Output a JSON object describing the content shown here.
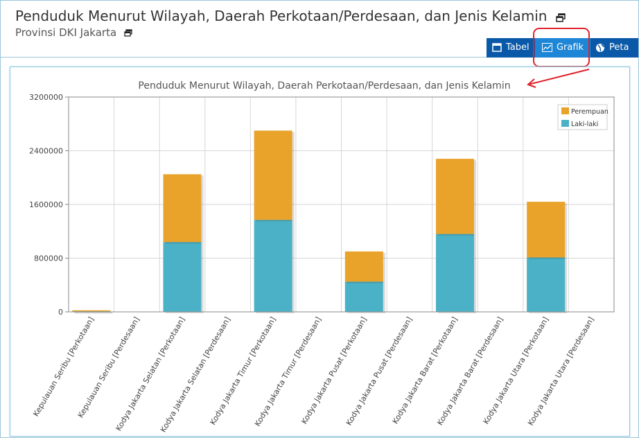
{
  "header": {
    "title": "Penduduk Menurut Wilayah, Daerah Perkotaan/Perdesaan, dan Jenis Kelamin",
    "subtitle": "Provinsi DKI Jakarta"
  },
  "tabs": [
    {
      "label": "Tabel",
      "icon": "window-icon"
    },
    {
      "label": "Grafik",
      "icon": "line-chart-icon",
      "active": true
    },
    {
      "label": "Peta",
      "icon": "globe-icon"
    }
  ],
  "colors": {
    "tab_bar": "#0a58a8",
    "tab_active": "#1e86d6",
    "laki_laki": "#4bb1c6",
    "perempuan": "#e9a32b",
    "annotation": "#e0202a"
  },
  "chart_data": {
    "type": "bar",
    "stacked": true,
    "title": "Penduduk Menurut Wilayah, Daerah Perkotaan/Perdesaan, dan Jenis Kelamin",
    "xlabel": "",
    "ylabel": "",
    "ylim": [
      0,
      3200000
    ],
    "yticks": [
      "3200000",
      "2400000",
      "1600000",
      "800000",
      "0"
    ],
    "grid": true,
    "legend_position": "top-right",
    "categories": [
      "Kepulauan Seribu [Perkotaan]",
      "Kepulauan Seribu [Perdesaan]",
      "Kodya Jakarta Selatan [Perkotaan]",
      "Kodya Jakarta Selatan [Perdesaan]",
      "Kodya Jakarta Timur [Perkotaan]",
      "Kodya Jakarta Timur [Perdesaan]",
      "Kodya Jakarta Pusat [Perkotaan]",
      "Kodya Jakarta Pusat [Perdesaan]",
      "Kodya Jakarta Barat [Perkotaan]",
      "Kodya Jakarta Barat [Perdesaan]",
      "Kodya Jakarta Utara [Perkotaan]",
      "Kodya Jakarta Utara [Perdesaan]"
    ],
    "series": [
      {
        "name": "Laki-laki",
        "color": "#4bb1c6",
        "values": [
          11900,
          0,
          1040000,
          0,
          1370000,
          0,
          450000,
          0,
          1160000,
          0,
          810000,
          0
        ]
      },
      {
        "name": "Perempuan",
        "color": "#e9a32b",
        "values": [
          11500,
          0,
          1010000,
          0,
          1330000,
          0,
          450000,
          0,
          1120000,
          0,
          830000,
          0
        ]
      }
    ]
  }
}
